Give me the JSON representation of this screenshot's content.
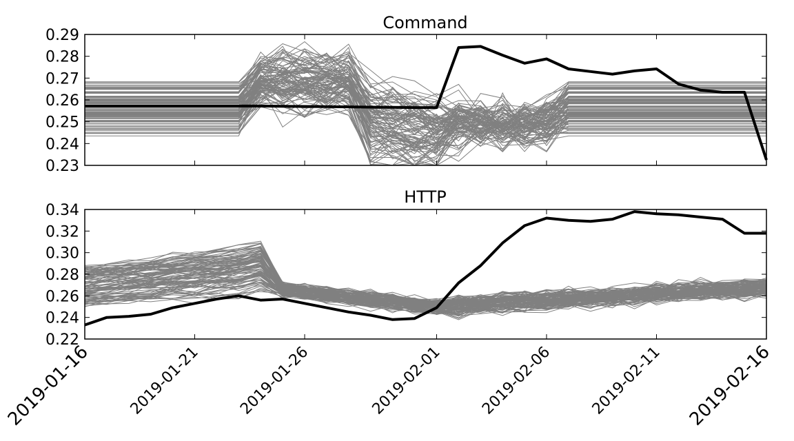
{
  "chart_data": [
    {
      "type": "line",
      "title": "Command",
      "xlabel": "",
      "ylabel": "",
      "ylim": [
        0.23,
        0.29
      ],
      "yticks": [
        "0.23",
        "0.24",
        "0.25",
        "0.26",
        "0.27",
        "0.28",
        "0.29"
      ],
      "grid": false,
      "background_series": {
        "color": "#808080",
        "count": 100,
        "description_range": [
          0.235,
          0.281
        ]
      },
      "highlight_series": {
        "color": "#000000",
        "x": [
          "2019-01-16",
          "2019-01-17",
          "2019-01-18",
          "2019-01-19",
          "2019-01-20",
          "2019-01-21",
          "2019-01-22",
          "2019-01-23",
          "2019-01-24",
          "2019-01-25",
          "2019-01-26",
          "2019-01-27",
          "2019-01-28",
          "2019-01-29",
          "2019-01-30",
          "2019-01-31",
          "2019-02-01",
          "2019-02-02",
          "2019-02-03",
          "2019-02-04",
          "2019-02-05",
          "2019-02-06",
          "2019-02-07",
          "2019-02-08",
          "2019-02-09",
          "2019-02-10",
          "2019-02-11",
          "2019-02-12",
          "2019-02-13",
          "2019-02-14",
          "2019-02-15",
          "2019-02-16"
        ],
        "values": [
          0.2572,
          0.2572,
          0.2572,
          0.2572,
          0.2572,
          0.2572,
          0.2572,
          0.2572,
          0.2572,
          0.2571,
          0.257,
          0.2569,
          0.2568,
          0.2567,
          0.2566,
          0.2565,
          0.2565,
          0.284,
          0.2845,
          0.2805,
          0.2768,
          0.2788,
          0.2742,
          0.273,
          0.2718,
          0.2733,
          0.2742,
          0.2673,
          0.2645,
          0.2635,
          0.2635,
          0.2325
        ]
      }
    },
    {
      "type": "line",
      "title": "HTTP",
      "xlabel": "",
      "ylabel": "",
      "ylim": [
        0.22,
        0.34
      ],
      "yticks": [
        "0.22",
        "0.24",
        "0.26",
        "0.28",
        "0.30",
        "0.32",
        "0.34"
      ],
      "grid": false,
      "background_series": {
        "color": "#808080",
        "count": 100,
        "description_range": [
          0.232,
          0.3
        ]
      },
      "highlight_series": {
        "color": "#000000",
        "x": [
          "2019-01-16",
          "2019-01-17",
          "2019-01-18",
          "2019-01-19",
          "2019-01-20",
          "2019-01-21",
          "2019-01-22",
          "2019-01-23",
          "2019-01-24",
          "2019-01-25",
          "2019-01-26",
          "2019-01-27",
          "2019-01-28",
          "2019-01-29",
          "2019-01-30",
          "2019-01-31",
          "2019-02-01",
          "2019-02-02",
          "2019-02-03",
          "2019-02-04",
          "2019-02-05",
          "2019-02-06",
          "2019-02-07",
          "2019-02-08",
          "2019-02-09",
          "2019-02-10",
          "2019-02-11",
          "2019-02-12",
          "2019-02-13",
          "2019-02-14",
          "2019-02-15",
          "2019-02-16"
        ],
        "values": [
          0.233,
          0.24,
          0.241,
          0.243,
          0.249,
          0.253,
          0.257,
          0.26,
          0.256,
          0.257,
          0.253,
          0.249,
          0.245,
          0.242,
          0.238,
          0.239,
          0.249,
          0.272,
          0.288,
          0.309,
          0.325,
          0.332,
          0.33,
          0.329,
          0.331,
          0.338,
          0.336,
          0.335,
          0.333,
          0.331,
          0.318,
          0.318
        ]
      }
    }
  ],
  "shared_x": {
    "type": "date",
    "range": [
      "2019-01-16",
      "2019-02-16"
    ],
    "ticks": [
      "2019-01-16",
      "2019-01-21",
      "2019-01-26",
      "2019-02-01",
      "2019-02-06",
      "2019-02-11",
      "2019-02-16"
    ]
  }
}
